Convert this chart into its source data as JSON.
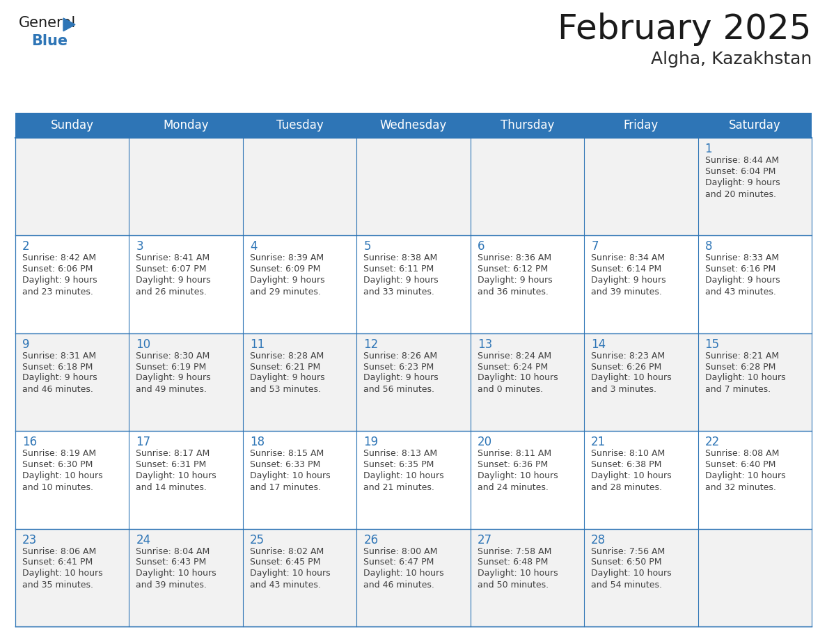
{
  "title": "February 2025",
  "subtitle": "Algha, Kazakhstan",
  "header_color": "#2E75B6",
  "header_text_color": "#FFFFFF",
  "days_of_week": [
    "Sunday",
    "Monday",
    "Tuesday",
    "Wednesday",
    "Thursday",
    "Friday",
    "Saturday"
  ],
  "background_color": "#FFFFFF",
  "cell_border_color": "#2E75B6",
  "day_number_color": "#2E75B6",
  "text_color": "#404040",
  "cell_bg_odd": "#F2F2F2",
  "cell_bg_even": "#FFFFFF",
  "calendar_data": [
    [
      null,
      null,
      null,
      null,
      null,
      null,
      {
        "day": 1,
        "sunrise": "8:44 AM",
        "sunset": "6:04 PM",
        "daylight": "9 hours\nand 20 minutes."
      }
    ],
    [
      {
        "day": 2,
        "sunrise": "8:42 AM",
        "sunset": "6:06 PM",
        "daylight": "9 hours\nand 23 minutes."
      },
      {
        "day": 3,
        "sunrise": "8:41 AM",
        "sunset": "6:07 PM",
        "daylight": "9 hours\nand 26 minutes."
      },
      {
        "day": 4,
        "sunrise": "8:39 AM",
        "sunset": "6:09 PM",
        "daylight": "9 hours\nand 29 minutes."
      },
      {
        "day": 5,
        "sunrise": "8:38 AM",
        "sunset": "6:11 PM",
        "daylight": "9 hours\nand 33 minutes."
      },
      {
        "day": 6,
        "sunrise": "8:36 AM",
        "sunset": "6:12 PM",
        "daylight": "9 hours\nand 36 minutes."
      },
      {
        "day": 7,
        "sunrise": "8:34 AM",
        "sunset": "6:14 PM",
        "daylight": "9 hours\nand 39 minutes."
      },
      {
        "day": 8,
        "sunrise": "8:33 AM",
        "sunset": "6:16 PM",
        "daylight": "9 hours\nand 43 minutes."
      }
    ],
    [
      {
        "day": 9,
        "sunrise": "8:31 AM",
        "sunset": "6:18 PM",
        "daylight": "9 hours\nand 46 minutes."
      },
      {
        "day": 10,
        "sunrise": "8:30 AM",
        "sunset": "6:19 PM",
        "daylight": "9 hours\nand 49 minutes."
      },
      {
        "day": 11,
        "sunrise": "8:28 AM",
        "sunset": "6:21 PM",
        "daylight": "9 hours\nand 53 minutes."
      },
      {
        "day": 12,
        "sunrise": "8:26 AM",
        "sunset": "6:23 PM",
        "daylight": "9 hours\nand 56 minutes."
      },
      {
        "day": 13,
        "sunrise": "8:24 AM",
        "sunset": "6:24 PM",
        "daylight": "10 hours\nand 0 minutes."
      },
      {
        "day": 14,
        "sunrise": "8:23 AM",
        "sunset": "6:26 PM",
        "daylight": "10 hours\nand 3 minutes."
      },
      {
        "day": 15,
        "sunrise": "8:21 AM",
        "sunset": "6:28 PM",
        "daylight": "10 hours\nand 7 minutes."
      }
    ],
    [
      {
        "day": 16,
        "sunrise": "8:19 AM",
        "sunset": "6:30 PM",
        "daylight": "10 hours\nand 10 minutes."
      },
      {
        "day": 17,
        "sunrise": "8:17 AM",
        "sunset": "6:31 PM",
        "daylight": "10 hours\nand 14 minutes."
      },
      {
        "day": 18,
        "sunrise": "8:15 AM",
        "sunset": "6:33 PM",
        "daylight": "10 hours\nand 17 minutes."
      },
      {
        "day": 19,
        "sunrise": "8:13 AM",
        "sunset": "6:35 PM",
        "daylight": "10 hours\nand 21 minutes."
      },
      {
        "day": 20,
        "sunrise": "8:11 AM",
        "sunset": "6:36 PM",
        "daylight": "10 hours\nand 24 minutes."
      },
      {
        "day": 21,
        "sunrise": "8:10 AM",
        "sunset": "6:38 PM",
        "daylight": "10 hours\nand 28 minutes."
      },
      {
        "day": 22,
        "sunrise": "8:08 AM",
        "sunset": "6:40 PM",
        "daylight": "10 hours\nand 32 minutes."
      }
    ],
    [
      {
        "day": 23,
        "sunrise": "8:06 AM",
        "sunset": "6:41 PM",
        "daylight": "10 hours\nand 35 minutes."
      },
      {
        "day": 24,
        "sunrise": "8:04 AM",
        "sunset": "6:43 PM",
        "daylight": "10 hours\nand 39 minutes."
      },
      {
        "day": 25,
        "sunrise": "8:02 AM",
        "sunset": "6:45 PM",
        "daylight": "10 hours\nand 43 minutes."
      },
      {
        "day": 26,
        "sunrise": "8:00 AM",
        "sunset": "6:47 PM",
        "daylight": "10 hours\nand 46 minutes."
      },
      {
        "day": 27,
        "sunrise": "7:58 AM",
        "sunset": "6:48 PM",
        "daylight": "10 hours\nand 50 minutes."
      },
      {
        "day": 28,
        "sunrise": "7:56 AM",
        "sunset": "6:50 PM",
        "daylight": "10 hours\nand 54 minutes."
      },
      null
    ]
  ],
  "logo_fontsize_general": 15,
  "logo_fontsize_blue": 15,
  "header_fontsize": 36,
  "subtitle_fontsize": 18,
  "day_header_fontsize": 12,
  "day_number_fontsize": 12,
  "cell_text_fontsize": 9
}
